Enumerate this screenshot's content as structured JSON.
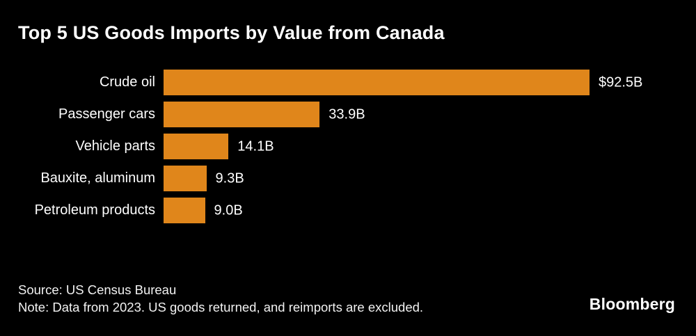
{
  "title": "Top 5 US Goods Imports by Value from Canada",
  "footer": {
    "source_line": "Source: US Census Bureau",
    "note_line": "Note: Data from 2023. US goods returned, and reimports are excluded."
  },
  "brand": {
    "logo_text": "Bloomberg"
  },
  "colors": {
    "background": "#000000",
    "bar": "#E0861B",
    "text": "#FFFFFF"
  },
  "chart_data": {
    "type": "bar",
    "orientation": "horizontal",
    "title": "Top 5 US Goods Imports by Value from Canada",
    "categories": [
      "Crude oil",
      "Passenger cars",
      "Vehicle parts",
      "Bauxite, aluminum",
      "Petroleum products"
    ],
    "values": [
      92.5,
      33.9,
      14.1,
      9.3,
      9.0
    ],
    "value_labels": [
      "$92.5B",
      "33.9B",
      "14.1B",
      "9.3B",
      "9.0B"
    ],
    "unit": "billion USD",
    "xlabel": "",
    "ylabel": "",
    "xlim": [
      0,
      92.5
    ],
    "grid": false,
    "legend": "none"
  }
}
